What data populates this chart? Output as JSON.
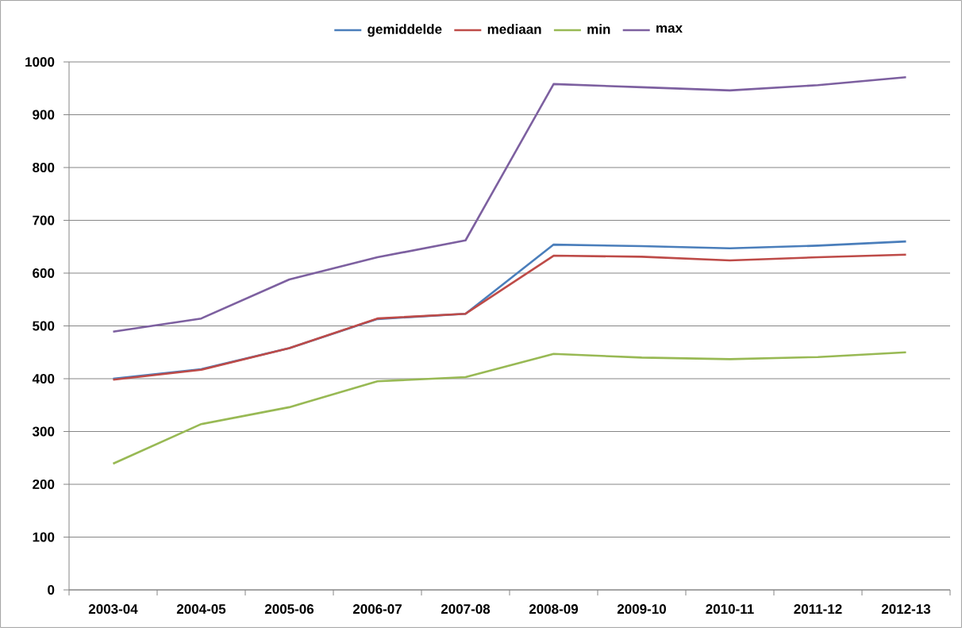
{
  "chart_data": {
    "type": "line",
    "categories": [
      "2003-04",
      "2004-05",
      "2005-06",
      "2006-07",
      "2007-08",
      "2008-09",
      "2009-10",
      "2010-11",
      "2011-12",
      "2012-13"
    ],
    "series": [
      {
        "name": "gemiddelde",
        "color": "#4a7ebb",
        "values": [
          400,
          418,
          458,
          513,
          523,
          654,
          651,
          647,
          652,
          660
        ]
      },
      {
        "name": "mediaan",
        "color": "#be4b48",
        "values": [
          398,
          417,
          458,
          514,
          523,
          633,
          631,
          624,
          630,
          635
        ]
      },
      {
        "name": "min",
        "color": "#98b954",
        "values": [
          239,
          314,
          346,
          395,
          403,
          447,
          440,
          437,
          441,
          450
        ]
      },
      {
        "name": "max",
        "color": "#7d60a0",
        "values": [
          489,
          514,
          588,
          630,
          662,
          958,
          952,
          946,
          956,
          971
        ]
      }
    ],
    "ylim": [
      0,
      1000
    ],
    "yticks": [
      0,
      100,
      200,
      300,
      400,
      500,
      600,
      700,
      800,
      900,
      1000
    ],
    "grid": "y",
    "legend": "top"
  }
}
